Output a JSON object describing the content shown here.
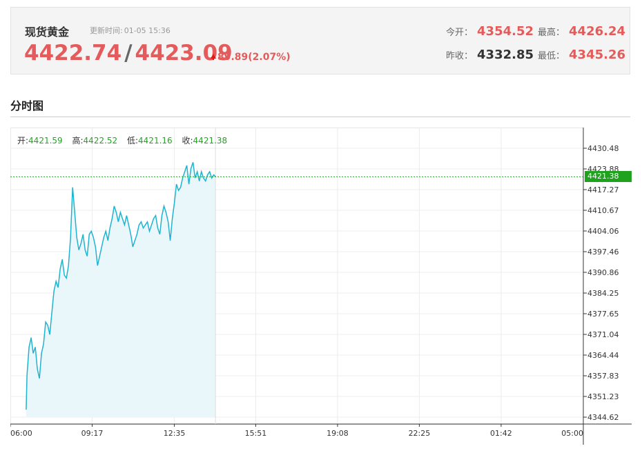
{
  "quote": {
    "name": "现货黄金",
    "update_label": "更新时间:",
    "update_time": "01-05 15:36",
    "bid": "4422.74",
    "separator": "/",
    "ask": "4423.09",
    "change": "89.89(2.07%)",
    "open_label": "今开：",
    "open": "4354.52",
    "high_label": "最高：",
    "high": "4426.24",
    "prev_close_label": "昨收：",
    "prev_close": "4332.85",
    "low_label": "最低：",
    "low": "4345.26"
  },
  "section": {
    "title": "分时图"
  },
  "ohlc": {
    "open_label": "开:",
    "open": "4421.59",
    "high_label": "高:",
    "high": "4422.52",
    "low_label": "低:",
    "low": "4421.16",
    "close_label": "收:",
    "close": "4421.38"
  },
  "current_tag": "4421.38",
  "colors": {
    "up": "#e55a5a",
    "down_green": "#1fa31f",
    "line": "#1eb3d0",
    "fill": "#e9f7fb"
  },
  "chart_data": {
    "type": "area",
    "title": "",
    "xlabel": "",
    "ylabel": "",
    "x_ticks": [
      "06:00",
      "09:17",
      "12:35",
      "15:51",
      "19:08",
      "22:25",
      "01:42",
      "05:00"
    ],
    "y_ticks": [
      "4430.48",
      "4423.88",
      "4417.27",
      "4410.67",
      "4404.06",
      "4397.46",
      "4390.86",
      "4384.25",
      "4377.65",
      "4371.04",
      "4364.44",
      "4357.83",
      "4351.23",
      "4344.62"
    ],
    "ylim": [
      4344.62,
      4430.48
    ],
    "current_value": 4421.38,
    "series": [
      {
        "points": [
          [
            "06:38",
            4347
          ],
          [
            "06:40",
            4358
          ],
          [
            "06:45",
            4367
          ],
          [
            "06:50",
            4370
          ],
          [
            "06:55",
            4365
          ],
          [
            "07:00",
            4367
          ],
          [
            "07:05",
            4360
          ],
          [
            "07:10",
            4357
          ],
          [
            "07:15",
            4365
          ],
          [
            "07:20",
            4368
          ],
          [
            "07:25",
            4375
          ],
          [
            "07:30",
            4374
          ],
          [
            "07:35",
            4371
          ],
          [
            "07:40",
            4378
          ],
          [
            "07:45",
            4385
          ],
          [
            "07:50",
            4388
          ],
          [
            "07:55",
            4386
          ],
          [
            "08:00",
            4392
          ],
          [
            "08:05",
            4395
          ],
          [
            "08:10",
            4390
          ],
          [
            "08:15",
            4389
          ],
          [
            "08:20",
            4393
          ],
          [
            "08:25",
            4402
          ],
          [
            "08:30",
            4418
          ],
          [
            "08:35",
            4410
          ],
          [
            "08:40",
            4402
          ],
          [
            "08:45",
            4398
          ],
          [
            "08:50",
            4400
          ],
          [
            "08:55",
            4403
          ],
          [
            "09:00",
            4398
          ],
          [
            "09:05",
            4396
          ],
          [
            "09:10",
            4403
          ],
          [
            "09:15",
            4404
          ],
          [
            "09:20",
            4402
          ],
          [
            "09:25",
            4399
          ],
          [
            "09:30",
            4393
          ],
          [
            "09:35",
            4396
          ],
          [
            "09:40",
            4399
          ],
          [
            "09:45",
            4402
          ],
          [
            "09:50",
            4404
          ],
          [
            "09:55",
            4401
          ],
          [
            "10:00",
            4405
          ],
          [
            "10:05",
            4408
          ],
          [
            "10:10",
            4412
          ],
          [
            "10:15",
            4410
          ],
          [
            "10:20",
            4407
          ],
          [
            "10:25",
            4410
          ],
          [
            "10:30",
            4408
          ],
          [
            "10:35",
            4406
          ],
          [
            "10:40",
            4409
          ],
          [
            "10:45",
            4406
          ],
          [
            "10:50",
            4403
          ],
          [
            "10:55",
            4399
          ],
          [
            "11:00",
            4401
          ],
          [
            "11:05",
            4403
          ],
          [
            "11:10",
            4406
          ],
          [
            "11:15",
            4407
          ],
          [
            "11:20",
            4405
          ],
          [
            "11:25",
            4406
          ],
          [
            "11:30",
            4407
          ],
          [
            "11:35",
            4404
          ],
          [
            "11:40",
            4406
          ],
          [
            "11:45",
            4408
          ],
          [
            "11:50",
            4409
          ],
          [
            "11:55",
            4405
          ],
          [
            "12:00",
            4403
          ],
          [
            "12:05",
            4409
          ],
          [
            "12:10",
            4412
          ],
          [
            "12:15",
            4410
          ],
          [
            "12:20",
            4407
          ],
          [
            "12:25",
            4401
          ],
          [
            "12:30",
            4408
          ],
          [
            "12:35",
            4413
          ],
          [
            "12:40",
            4419
          ],
          [
            "12:45",
            4417
          ],
          [
            "12:50",
            4418
          ],
          [
            "12:55",
            4421
          ],
          [
            "13:00",
            4423
          ],
          [
            "13:05",
            4425
          ],
          [
            "13:10",
            4419
          ],
          [
            "13:15",
            4424
          ],
          [
            "13:20",
            4426
          ],
          [
            "13:25",
            4421
          ],
          [
            "13:30",
            4423
          ],
          [
            "13:35",
            4420
          ],
          [
            "13:40",
            4423
          ],
          [
            "13:45",
            4421
          ],
          [
            "13:50",
            4420
          ],
          [
            "13:55",
            4422
          ],
          [
            "14:00",
            4423
          ],
          [
            "14:05",
            4421
          ],
          [
            "14:10",
            4422
          ],
          [
            "14:14",
            4421.38
          ]
        ]
      }
    ]
  }
}
